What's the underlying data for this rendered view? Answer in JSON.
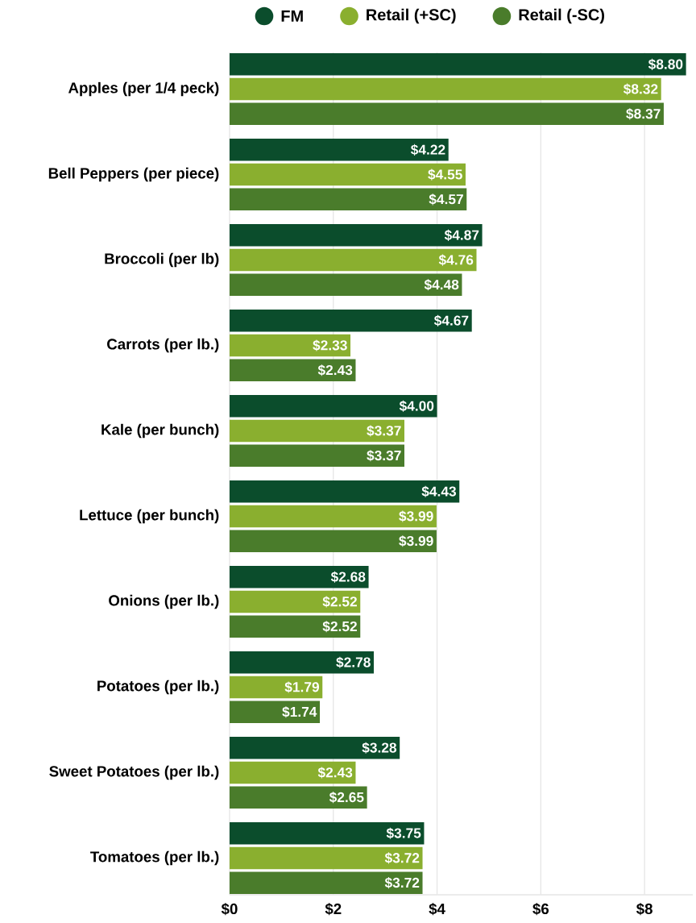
{
  "chart_data": {
    "type": "bar",
    "orientation": "horizontal",
    "categories": [
      "Apples (per 1/4 peck)",
      "Bell Peppers (per piece)",
      "Broccoli (per lb)",
      "Carrots (per lb.)",
      "Kale (per bunch)",
      "Lettuce (per bunch)",
      "Onions (per lb.)",
      "Potatoes (per lb.)",
      "Sweet Potatoes (per lb.)",
      "Tomatoes (per lb.)"
    ],
    "series": [
      {
        "name": "FM",
        "color": "#0b4d2c",
        "values": [
          8.8,
          4.22,
          4.87,
          4.67,
          4.0,
          4.43,
          2.68,
          2.78,
          3.28,
          3.75
        ],
        "value_labels": [
          "$8.80",
          "$4.22",
          "$4.87",
          "$4.67",
          "$4.00",
          "$4.43",
          "$2.68",
          "$2.78",
          "$3.28",
          "$3.75"
        ]
      },
      {
        "name": "Retail (+SC)",
        "color": "#8aaf2f",
        "values": [
          8.32,
          4.55,
          4.76,
          2.33,
          3.37,
          3.99,
          2.52,
          1.79,
          2.43,
          3.72
        ],
        "value_labels": [
          "$8.32",
          "$4.55",
          "$4.76",
          "$2.33",
          "$3.37",
          "$3.99",
          "$2.52",
          "$1.79",
          "$2.43",
          "$3.72"
        ]
      },
      {
        "name": "Retail (-SC)",
        "color": "#4a7c2b",
        "values": [
          8.37,
          4.57,
          4.48,
          2.43,
          3.37,
          3.99,
          2.52,
          1.74,
          2.65,
          3.72
        ],
        "value_labels": [
          "$8.37",
          "$4.57",
          "$4.48",
          "$2.43",
          "$3.37",
          "$3.99",
          "$2.52",
          "$1.74",
          "$2.65",
          "$3.72"
        ]
      }
    ],
    "xlim": [
      0,
      8.93
    ],
    "xticks": [
      {
        "value": 0,
        "label": "$0"
      },
      {
        "value": 2,
        "label": "$2"
      },
      {
        "value": 4,
        "label": "$4"
      },
      {
        "value": 6,
        "label": "$6"
      },
      {
        "value": 8,
        "label": "$8"
      }
    ],
    "grid": "x",
    "legend": "top"
  }
}
